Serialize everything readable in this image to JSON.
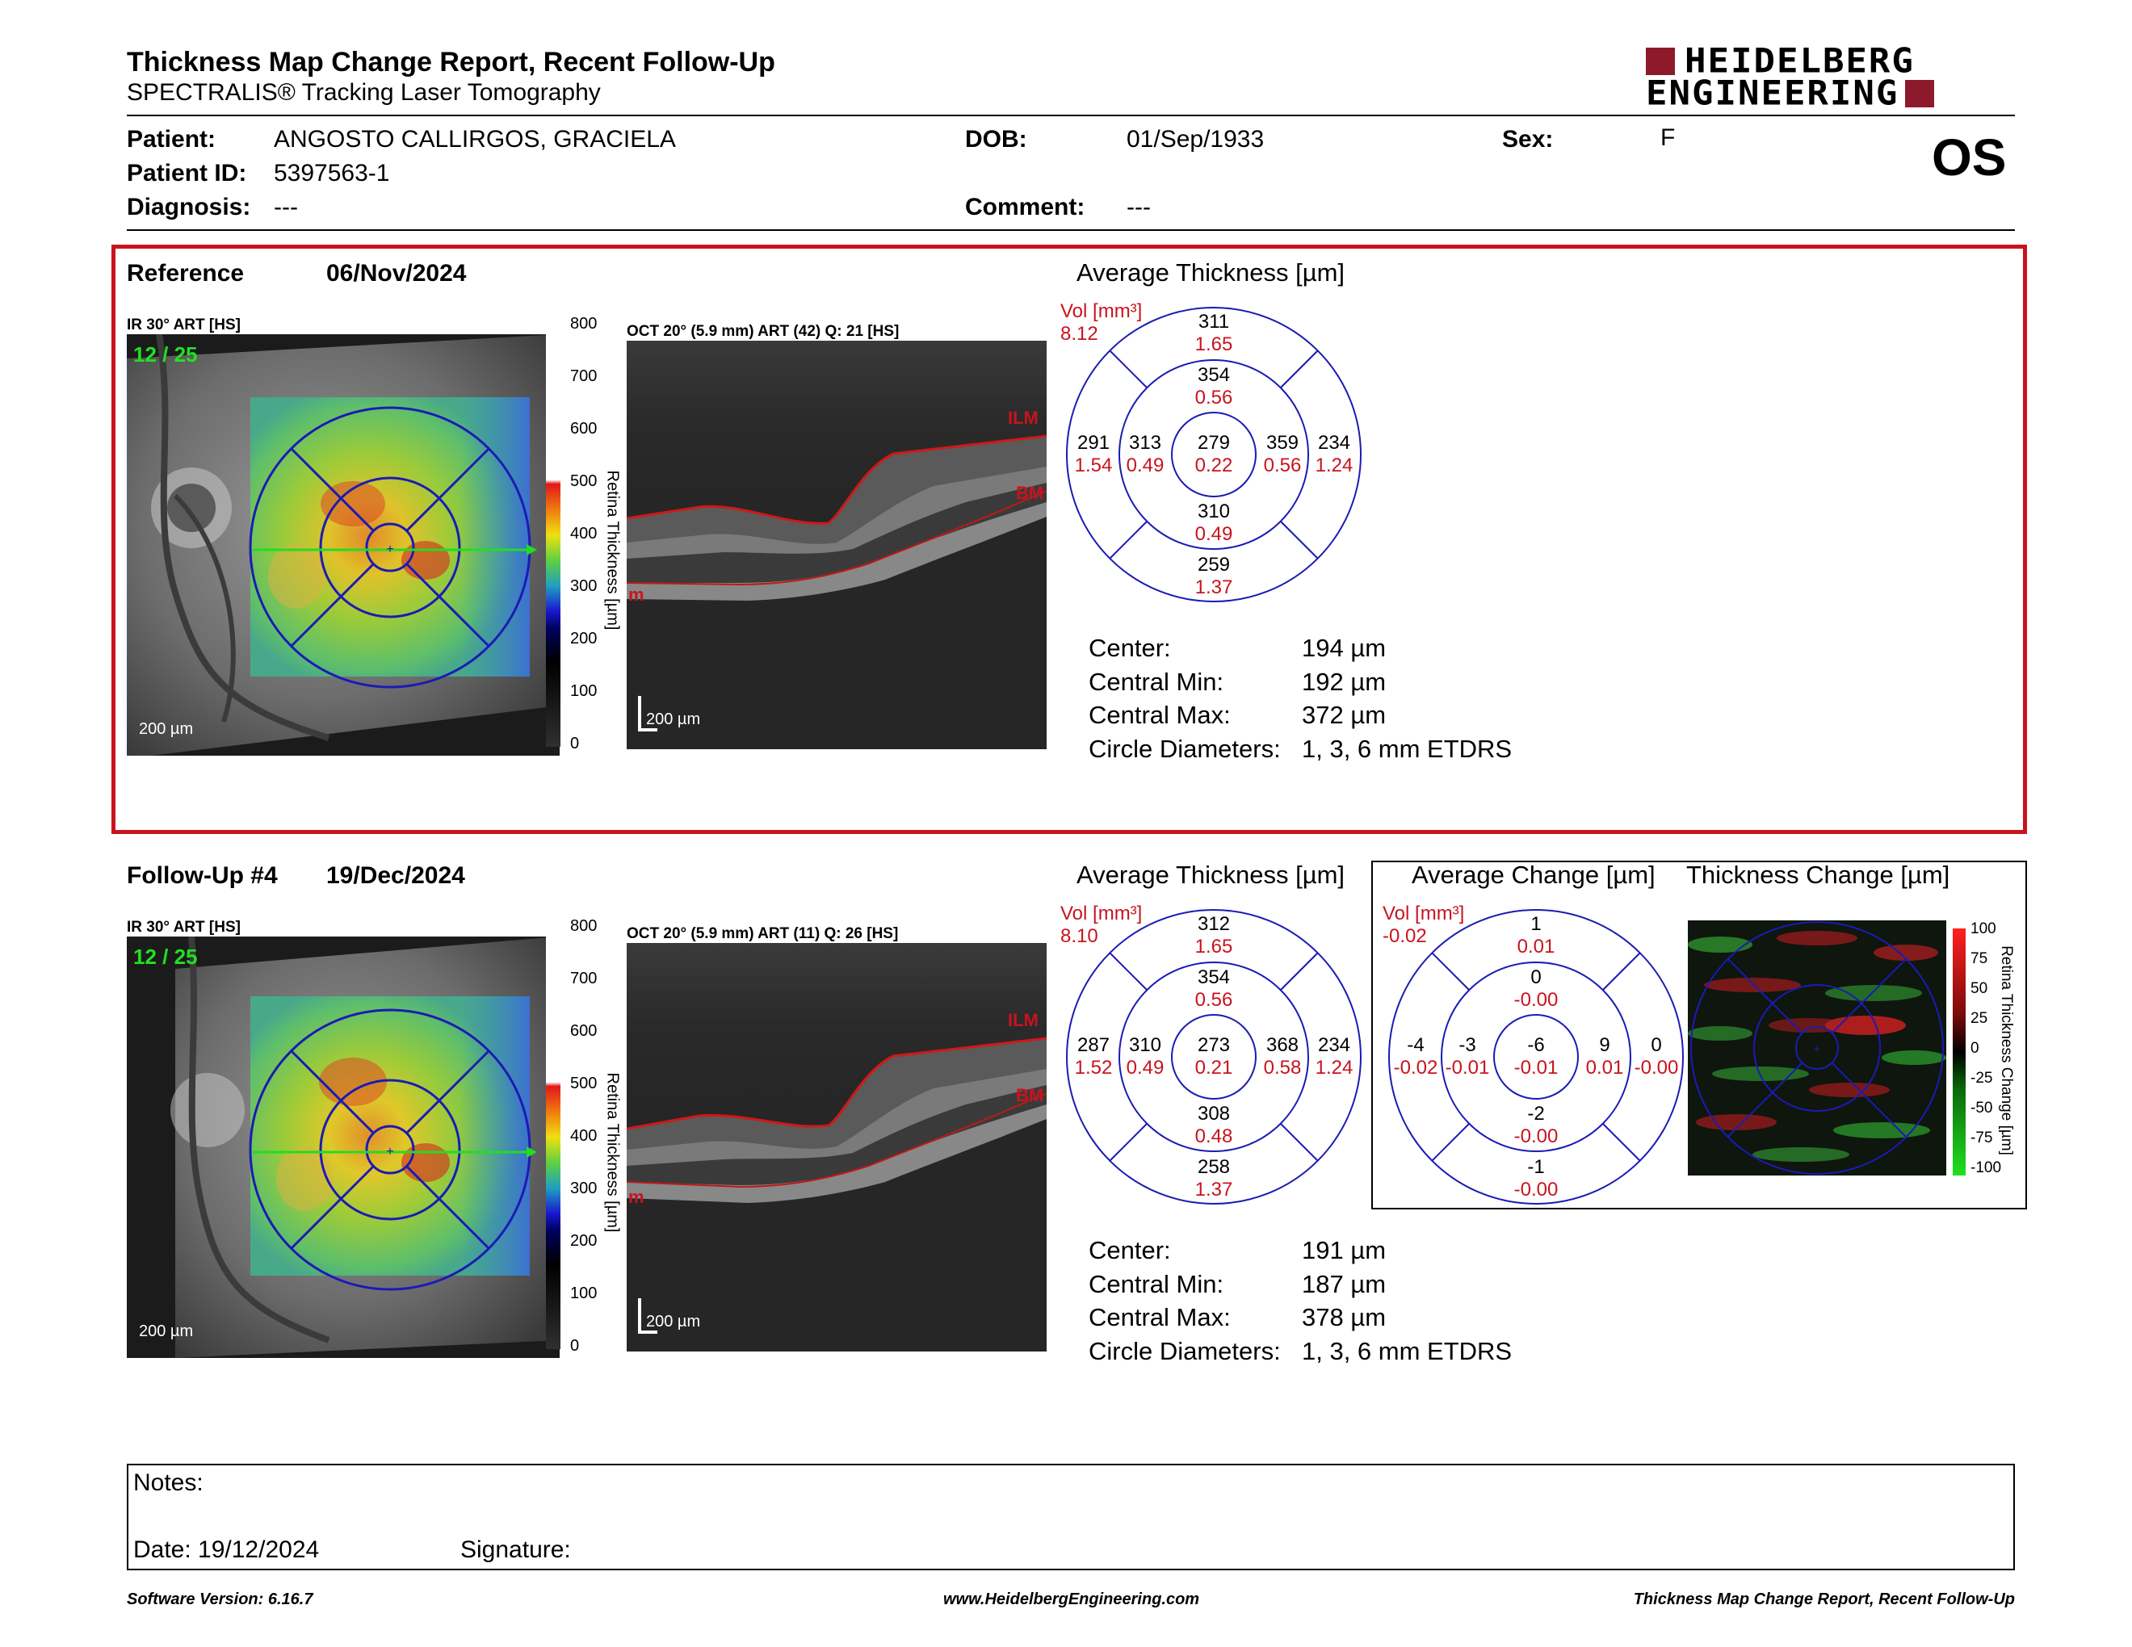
{
  "header": {
    "title": "Thickness Map Change Report, Recent Follow-Up",
    "subtitle": "SPECTRALIS® Tracking Laser Tomography",
    "logo_line1": "HEIDELBERG",
    "logo_line2": "ENGINEERING"
  },
  "patient": {
    "patient_label": "Patient:",
    "patient_value": "ANGOSTO CALLIRGOS, GRACIELA",
    "id_label": "Patient ID:",
    "id_value": "5397563-1",
    "diagnosis_label": "Diagnosis:",
    "diagnosis_value": "---",
    "dob_label": "DOB:",
    "dob_value": "01/Sep/1933",
    "comment_label": "Comment:",
    "comment_value": "---",
    "sex_label": "Sex:",
    "sex_value": "F",
    "eye": "OS"
  },
  "reference": {
    "label": "Reference",
    "date": "06/Nov/2024",
    "ir_caption": "IR 30° ART [HS]",
    "frame_count": "12 / 25",
    "oct_caption": "OCT 20° (5.9 mm) ART (42) Q: 21 [HS]",
    "avg_title": "Average Thickness [µm]",
    "vol_label": "Vol [mm³]",
    "vol_value": "8.12",
    "etdrs": {
      "sup_outer": "311",
      "sup_outer_vol": "1.65",
      "sup_inner": "354",
      "sup_inner_vol": "0.56",
      "temp_outer": "291",
      "temp_outer_vol": "1.54",
      "temp_inner": "313",
      "temp_inner_vol": "0.49",
      "center": "279",
      "center_vol": "0.22",
      "nas_inner": "359",
      "nas_inner_vol": "0.56",
      "nas_outer": "234",
      "nas_outer_vol": "1.24",
      "inf_inner": "310",
      "inf_inner_vol": "0.49",
      "inf_outer": "259",
      "inf_outer_vol": "1.37"
    },
    "stats": {
      "center_label": "Center:",
      "center_value": "194 µm",
      "min_label": "Central Min:",
      "min_value": "192 µm",
      "max_label": "Central Max:",
      "max_value": "372 µm",
      "diam_label": "Circle Diameters:",
      "diam_value": "1, 3, 6 mm ETDRS"
    }
  },
  "followup": {
    "label": "Follow-Up #4",
    "date": "19/Dec/2024",
    "ir_caption": "IR 30° ART [HS]",
    "frame_count": "12 / 25",
    "oct_caption": "OCT 20° (5.9 mm) ART (11) Q: 26 [HS]",
    "avg_title": "Average Thickness [µm]",
    "vol_label": "Vol [mm³]",
    "vol_value": "8.10",
    "etdrs": {
      "sup_outer": "312",
      "sup_outer_vol": "1.65",
      "sup_inner": "354",
      "sup_inner_vol": "0.56",
      "temp_outer": "287",
      "temp_outer_vol": "1.52",
      "temp_inner": "310",
      "temp_inner_vol": "0.49",
      "center": "273",
      "center_vol": "0.21",
      "nas_inner": "368",
      "nas_inner_vol": "0.58",
      "nas_outer": "234",
      "nas_outer_vol": "1.24",
      "inf_inner": "308",
      "inf_inner_vol": "0.48",
      "inf_outer": "258",
      "inf_outer_vol": "1.37"
    },
    "stats": {
      "center_label": "Center:",
      "center_value": "191 µm",
      "min_label": "Central Min:",
      "min_value": "187 µm",
      "max_label": "Central Max:",
      "max_value": "378 µm",
      "diam_label": "Circle Diameters:",
      "diam_value": "1, 3, 6 mm ETDRS"
    }
  },
  "change": {
    "avg_title": "Average Change [µm]",
    "map_title": "Thickness Change [µm]",
    "vol_label": "Vol [mm³]",
    "vol_value": "-0.02",
    "etdrs": {
      "sup_outer": "1",
      "sup_outer_vol": "0.01",
      "sup_inner": "0",
      "sup_inner_vol": "-0.00",
      "temp_outer": "-4",
      "temp_outer_vol": "-0.02",
      "temp_inner": "-3",
      "temp_inner_vol": "-0.01",
      "center": "-6",
      "center_vol": "-0.01",
      "nas_inner": "9",
      "nas_inner_vol": "0.01",
      "nas_outer": "0",
      "nas_outer_vol": "-0.00",
      "inf_inner": "-2",
      "inf_inner_vol": "-0.00",
      "inf_outer": "-1",
      "inf_outer_vol": "-0.00"
    },
    "scale_ticks": [
      "100",
      "75",
      "50",
      "25",
      "0",
      "-25",
      "-50",
      "-75",
      "-100"
    ],
    "scale_label": "Retina Thickness Change [µm]"
  },
  "thickness_scale": {
    "ticks": [
      "800",
      "700",
      "600",
      "500",
      "400",
      "300",
      "200",
      "100",
      "0"
    ],
    "label": "Retina  Thickness [µm]"
  },
  "image_labels": {
    "scale_bar": "200 µm",
    "ilm": "ILM",
    "bm": "BM",
    "m": "m"
  },
  "notes": {
    "notes_label": "Notes:",
    "date_label": "Date: 19/12/2024",
    "signature_label": "Signature:"
  },
  "footer": {
    "software": "Software Version: 6.16.7",
    "website": "www.HeidelbergEngineering.com",
    "report_name": "Thickness Map Change Report, Recent Follow-Up"
  },
  "colors": {
    "accent_red": "#c8141e",
    "etdrs_blue": "#1b1bb4",
    "logo_red": "#8c1a2b"
  }
}
